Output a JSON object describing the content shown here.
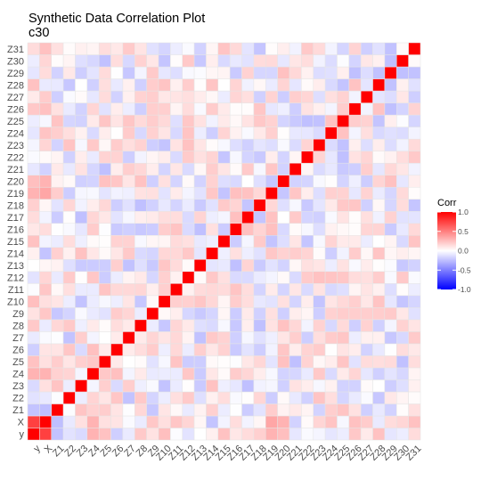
{
  "chart_data": {
    "type": "heatmap",
    "title": "Synthetic Data Correlation Plot",
    "subtitle": "c30",
    "x_categories": [
      "y",
      "X",
      "Z1",
      "Z2",
      "Z3",
      "Z4",
      "Z5",
      "Z6",
      "Z7",
      "Z8",
      "Z9",
      "Z10",
      "Z11",
      "Z12",
      "Z13",
      "Z14",
      "Z15",
      "Z16",
      "Z17",
      "Z18",
      "Z19",
      "Z20",
      "Z21",
      "Z22",
      "Z23",
      "Z24",
      "Z25",
      "Z26",
      "Z27",
      "Z28",
      "Z29",
      "Z30",
      "Z31"
    ],
    "y_categories": [
      "y",
      "X",
      "Z1",
      "Z2",
      "Z3",
      "Z4",
      "Z5",
      "Z6",
      "Z7",
      "Z8",
      "Z9",
      "Z10",
      "Z11",
      "Z12",
      "Z13",
      "Z14",
      "Z15",
      "Z16",
      "Z17",
      "Z18",
      "Z19",
      "Z20",
      "Z21",
      "Z22",
      "Z23",
      "Z24",
      "Z25",
      "Z26",
      "Z27",
      "Z28",
      "Z29",
      "Z30",
      "Z31"
    ],
    "diagonal_value": 1.0,
    "known_correlations": [
      {
        "a": "y",
        "b": "X",
        "value": 0.75
      },
      {
        "a": "y",
        "b": "Z4",
        "value": 0.3
      },
      {
        "a": "y",
        "b": "Z10",
        "value": 0.25
      },
      {
        "a": "y",
        "b": "Z19",
        "value": 0.3
      },
      {
        "a": "y",
        "b": "Z20",
        "value": 0.25
      },
      {
        "a": "X",
        "b": "Z4",
        "value": 0.3
      },
      {
        "a": "X",
        "b": "Z19",
        "value": 0.35
      },
      {
        "a": "X",
        "b": "Z20",
        "value": 0.3
      }
    ],
    "background_noise_range": [
      -0.25,
      0.25
    ],
    "legend": {
      "title": "Corr",
      "ticks": [
        "1.0",
        "0.5",
        "0.0",
        "-0.5",
        "-1.0"
      ],
      "tick_values": [
        1.0,
        0.5,
        0.0,
        -0.5,
        -1.0
      ],
      "placement": "right"
    },
    "colors": {
      "high": "#ff0000",
      "mid": "#ffffff",
      "low": "#0000ff",
      "cell_border": "#e5e5e5"
    }
  }
}
